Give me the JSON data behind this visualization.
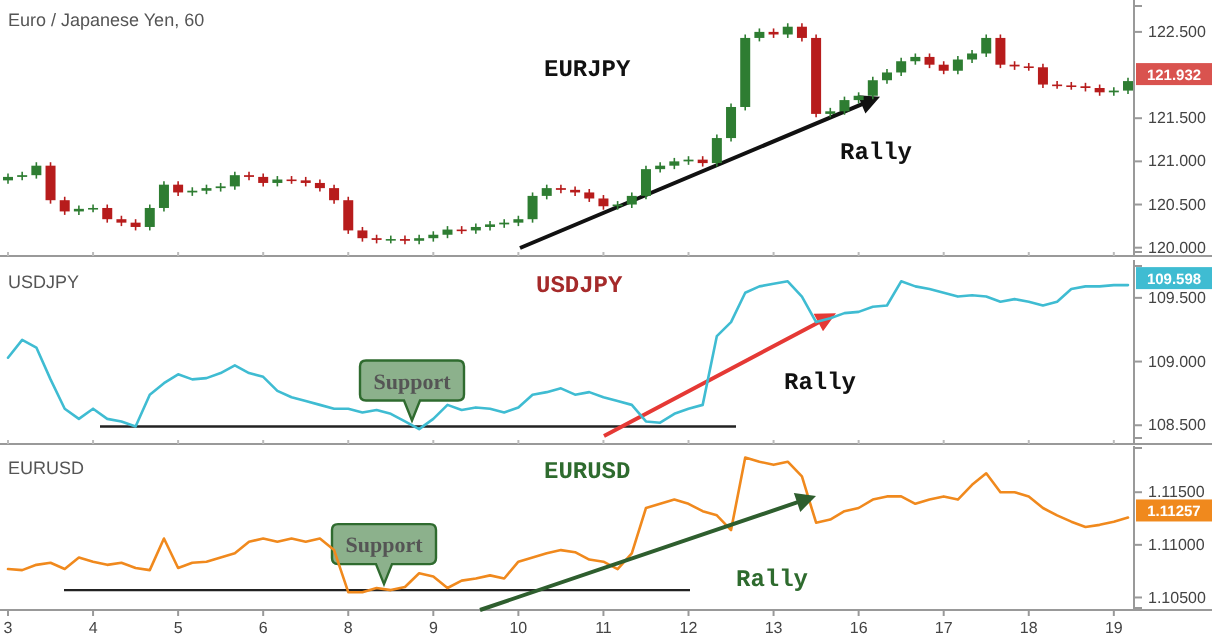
{
  "chart_data": [
    {
      "type": "candlestick",
      "title": "Euro / Japanese Yen, 60",
      "tick_labels": "y",
      "categories": [
        "3",
        null,
        null,
        null,
        null,
        null,
        "4",
        null,
        null,
        null,
        null,
        null,
        "5",
        null,
        null,
        null,
        null,
        null,
        "6",
        null,
        null,
        null,
        null,
        null,
        "8",
        null,
        null,
        null,
        null,
        null,
        "9",
        null,
        null,
        null,
        null,
        null,
        "10",
        null,
        null,
        null,
        null,
        null,
        "11",
        null,
        null,
        null,
        null,
        null,
        "12",
        null,
        null,
        null,
        null,
        null,
        "13",
        null,
        null,
        null,
        null,
        null,
        "16",
        null,
        null,
        null,
        null,
        null,
        "17",
        null,
        null,
        null,
        null,
        null,
        "18",
        null,
        null,
        null,
        null,
        null,
        "19",
        null
      ],
      "ohlc": [
        [
          120.78,
          120.86,
          120.74,
          120.82
        ],
        [
          120.82,
          120.88,
          120.78,
          120.84
        ],
        [
          120.84,
          120.99,
          120.8,
          120.95
        ],
        [
          120.95,
          120.99,
          120.51,
          120.55
        ],
        [
          120.55,
          120.59,
          120.38,
          120.42
        ],
        [
          120.42,
          120.49,
          120.38,
          120.45
        ],
        [
          120.45,
          120.5,
          120.41,
          120.46
        ],
        [
          120.46,
          120.5,
          120.29,
          120.33
        ],
        [
          120.33,
          120.37,
          120.25,
          120.29
        ],
        [
          120.29,
          120.33,
          120.2,
          120.24
        ],
        [
          120.24,
          120.5,
          120.2,
          120.46
        ],
        [
          120.46,
          120.77,
          120.42,
          120.73
        ],
        [
          120.73,
          120.77,
          120.6,
          120.64
        ],
        [
          120.64,
          120.7,
          120.6,
          120.66
        ],
        [
          120.66,
          120.73,
          120.62,
          120.69
        ],
        [
          120.69,
          120.75,
          120.65,
          120.71
        ],
        [
          120.71,
          120.88,
          120.67,
          120.84
        ],
        [
          120.84,
          120.88,
          120.78,
          120.82
        ],
        [
          120.82,
          120.86,
          120.71,
          120.75
        ],
        [
          120.75,
          120.83,
          120.71,
          120.79
        ],
        [
          120.79,
          120.83,
          120.74,
          120.78
        ],
        [
          120.78,
          120.82,
          120.71,
          120.75
        ],
        [
          120.75,
          120.79,
          120.65,
          120.69
        ],
        [
          120.69,
          120.73,
          120.51,
          120.55
        ],
        [
          120.55,
          120.59,
          120.16,
          120.2
        ],
        [
          120.2,
          120.24,
          120.07,
          120.11
        ],
        [
          120.11,
          120.15,
          120.05,
          120.09
        ],
        [
          120.09,
          120.14,
          120.05,
          120.1
        ],
        [
          120.1,
          120.14,
          120.04,
          120.08
        ],
        [
          120.08,
          120.15,
          120.04,
          120.11
        ],
        [
          120.11,
          120.19,
          120.07,
          120.15
        ],
        [
          120.15,
          120.25,
          120.11,
          120.21
        ],
        [
          120.21,
          120.25,
          120.16,
          120.2
        ],
        [
          120.2,
          120.28,
          120.16,
          120.24
        ],
        [
          120.24,
          120.31,
          120.2,
          120.27
        ],
        [
          120.27,
          120.33,
          120.23,
          120.29
        ],
        [
          120.29,
          120.37,
          120.25,
          120.33
        ],
        [
          120.33,
          120.64,
          120.29,
          120.6
        ],
        [
          120.6,
          120.73,
          120.56,
          120.69
        ],
        [
          120.69,
          120.73,
          120.63,
          120.67
        ],
        [
          120.67,
          120.71,
          120.6,
          120.64
        ],
        [
          120.64,
          120.68,
          120.53,
          120.57
        ],
        [
          120.57,
          120.61,
          120.44,
          120.48
        ],
        [
          120.48,
          120.54,
          120.44,
          120.5
        ],
        [
          120.5,
          120.64,
          120.46,
          120.6
        ],
        [
          120.6,
          120.95,
          120.56,
          120.91
        ],
        [
          120.91,
          120.99,
          120.87,
          120.95
        ],
        [
          120.95,
          121.04,
          120.91,
          121.0
        ],
        [
          121.0,
          121.06,
          120.96,
          121.02
        ],
        [
          121.02,
          121.06,
          120.94,
          120.98
        ],
        [
          120.98,
          121.31,
          120.94,
          121.27
        ],
        [
          121.27,
          121.67,
          121.23,
          121.63
        ],
        [
          121.63,
          122.47,
          121.59,
          122.43
        ],
        [
          122.43,
          122.54,
          122.39,
          122.5
        ],
        [
          122.5,
          122.54,
          122.43,
          122.47
        ],
        [
          122.47,
          122.6,
          122.43,
          122.56
        ],
        [
          122.56,
          122.6,
          122.39,
          122.43
        ],
        [
          122.43,
          122.47,
          121.51,
          121.55
        ],
        [
          121.55,
          121.62,
          121.51,
          121.58
        ],
        [
          121.58,
          121.75,
          121.54,
          121.71
        ],
        [
          121.71,
          121.8,
          121.67,
          121.76
        ],
        [
          121.76,
          121.98,
          121.72,
          121.94
        ],
        [
          121.94,
          122.07,
          121.9,
          122.03
        ],
        [
          122.03,
          122.2,
          121.99,
          122.16
        ],
        [
          122.16,
          122.25,
          122.12,
          122.21
        ],
        [
          122.21,
          122.25,
          122.08,
          122.12
        ],
        [
          122.12,
          122.16,
          122.01,
          122.05
        ],
        [
          122.05,
          122.22,
          122.01,
          122.18
        ],
        [
          122.18,
          122.29,
          122.14,
          122.25
        ],
        [
          122.25,
          122.47,
          122.21,
          122.43
        ],
        [
          122.43,
          122.47,
          122.08,
          122.12
        ],
        [
          122.12,
          122.16,
          122.06,
          122.1
        ],
        [
          122.1,
          122.14,
          122.05,
          122.09
        ],
        [
          122.09,
          122.13,
          121.85,
          121.89
        ],
        [
          121.89,
          121.93,
          121.84,
          121.88
        ],
        [
          121.88,
          121.92,
          121.83,
          121.87
        ],
        [
          121.87,
          121.91,
          121.81,
          121.85
        ],
        [
          121.85,
          121.89,
          121.76,
          121.8
        ],
        [
          121.8,
          121.86,
          121.76,
          121.82
        ],
        [
          121.82,
          121.97,
          121.78,
          121.93
        ]
      ],
      "ylim": [
        119.95,
        122.8
      ],
      "yticks": [
        {
          "value": 120,
          "label": "120.000"
        },
        {
          "value": 120.5,
          "label": "120.500"
        },
        {
          "value": 121,
          "label": "121.000"
        },
        {
          "value": 121.5,
          "label": "121.500"
        },
        {
          "value": 122.5,
          "label": "122.500"
        }
      ],
      "annotations": [
        "EURJPY",
        {
          "text": "Rally",
          "y": 121.75
        },
        "121.932"
      ]
    },
    {
      "type": "line",
      "title": "USDJPY",
      "tick_labels": "y",
      "categories": [
        "3",
        null,
        null,
        null,
        null,
        null,
        "4",
        null,
        null,
        null,
        null,
        null,
        "5",
        null,
        null,
        null,
        null,
        null,
        "6",
        null,
        null,
        null,
        null,
        null,
        "8",
        null,
        null,
        null,
        null,
        null,
        "9",
        null,
        null,
        null,
        null,
        null,
        "10",
        null,
        null,
        null,
        null,
        null,
        "11",
        null,
        null,
        null,
        null,
        null,
        "12",
        null,
        null,
        null,
        null,
        null,
        "13",
        null,
        null,
        null,
        null,
        null,
        "16",
        null,
        null,
        null,
        null,
        null,
        "17",
        null,
        null,
        null,
        null,
        null,
        "18",
        null,
        null,
        null,
        null,
        null,
        "19",
        null
      ],
      "series": [
        {
          "color": "#3fbcd2",
          "values": [
            109.03,
            109.17,
            109.11,
            108.86,
            108.63,
            108.55,
            108.63,
            108.55,
            108.53,
            108.49,
            108.74,
            108.83,
            108.9,
            108.86,
            108.87,
            108.91,
            108.97,
            108.91,
            108.88,
            108.77,
            108.72,
            108.69,
            108.66,
            108.63,
            108.63,
            108.6,
            108.62,
            108.59,
            108.53,
            108.47,
            108.55,
            108.66,
            108.62,
            108.64,
            108.63,
            108.6,
            108.64,
            108.74,
            108.76,
            108.79,
            108.74,
            108.76,
            108.72,
            108.69,
            108.66,
            108.53,
            108.52,
            108.59,
            108.63,
            108.66,
            109.2,
            109.31,
            109.54,
            109.59,
            109.61,
            109.63,
            109.51,
            109.31,
            109.34,
            109.38,
            109.39,
            109.43,
            109.44,
            109.63,
            109.59,
            109.57,
            109.54,
            109.51,
            109.52,
            109.51,
            109.47,
            109.49,
            109.47,
            109.44,
            109.47,
            109.57,
            109.59,
            109.59,
            109.6,
            109.6
          ]
        }
      ],
      "ylim": [
        108.4,
        109.75
      ],
      "yticks": [
        {
          "value": 108.5,
          "label": "108.500"
        },
        {
          "value": 109,
          "label": "109.000"
        },
        {
          "value": 109.5,
          "label": "109.500"
        }
      ],
      "ref_lines": [
        {
          "axis": "y",
          "value": 108.49,
          "label": "Support"
        }
      ],
      "annotations": [
        "USDJPY",
        {
          "text": "Rally",
          "y": 109.38
        },
        "109.598"
      ]
    },
    {
      "type": "line",
      "title": "EURUSD",
      "categories": [
        "3",
        null,
        null,
        null,
        null,
        null,
        "4",
        null,
        null,
        null,
        null,
        null,
        "5",
        null,
        null,
        null,
        null,
        null,
        "6",
        null,
        null,
        null,
        null,
        null,
        "8",
        null,
        null,
        null,
        null,
        null,
        "9",
        null,
        null,
        null,
        null,
        null,
        "10",
        null,
        null,
        null,
        null,
        null,
        "11",
        null,
        null,
        null,
        null,
        null,
        "12",
        null,
        null,
        null,
        null,
        null,
        "13",
        null,
        null,
        null,
        null,
        null,
        "16",
        null,
        null,
        null,
        null,
        null,
        "17",
        null,
        null,
        null,
        null,
        null,
        "18",
        null,
        null,
        null,
        null,
        null,
        "19",
        null
      ],
      "series": [
        {
          "color": "#f0891d",
          "values": [
            1.1077,
            1.1076,
            1.1081,
            1.1083,
            1.1077,
            1.1088,
            1.1084,
            1.1081,
            1.1083,
            1.1078,
            1.1076,
            1.1106,
            1.1078,
            1.1083,
            1.1084,
            1.1088,
            1.1092,
            1.1103,
            1.1106,
            1.1103,
            1.1106,
            1.1103,
            1.1106,
            1.1095,
            1.1055,
            1.1055,
            1.1059,
            1.1057,
            1.106,
            1.1073,
            1.107,
            1.1059,
            1.1066,
            1.1068,
            1.1071,
            1.1068,
            1.1084,
            1.1088,
            1.1092,
            1.1095,
            1.1093,
            1.1086,
            1.1084,
            1.1077,
            1.1092,
            1.1135,
            1.1139,
            1.1143,
            1.1139,
            1.1132,
            1.1128,
            1.1114,
            1.1183,
            1.1179,
            1.1176,
            1.1179,
            1.1165,
            1.1121,
            1.1124,
            1.1132,
            1.1135,
            1.1143,
            1.1146,
            1.1146,
            1.1139,
            1.1143,
            1.1146,
            1.1143,
            1.1157,
            1.1168,
            1.115,
            1.115,
            1.1146,
            1.1135,
            1.1128,
            1.1122,
            1.1117,
            1.1119,
            1.1122,
            1.1126
          ]
        }
      ],
      "ylim": [
        1.104,
        1.1192
      ],
      "yticks": [
        {
          "value": 1.105,
          "label": "1.10500"
        },
        {
          "value": 1.11,
          "label": "1.11000"
        },
        {
          "value": 1.115,
          "label": "1.11500"
        }
      ],
      "ref_lines": [
        {
          "axis": "y",
          "value": 1.1057,
          "label": "Support"
        }
      ],
      "annotations": [
        "EURUSD",
        "Rally",
        "1.11257"
      ]
    }
  ]
}
